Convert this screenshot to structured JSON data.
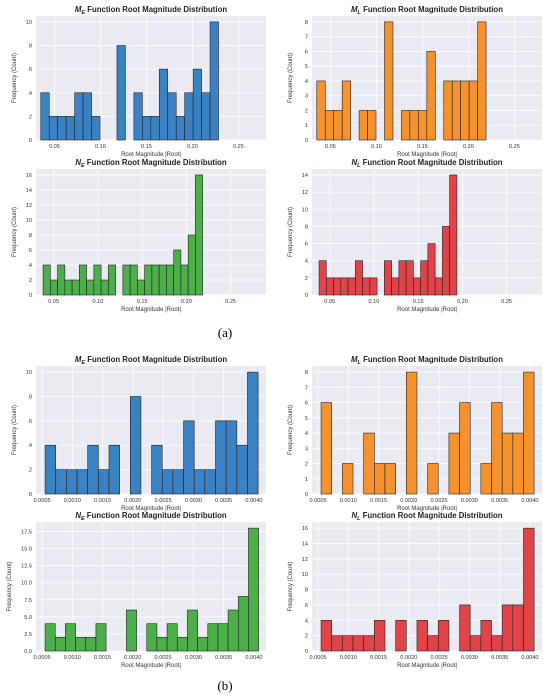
{
  "panel_labels": [
    "(a)",
    "(b)"
  ],
  "chart_data": [
    {
      "type": "bar",
      "group": "a",
      "title": {
        "symbol": "M",
        "sub": "E",
        "rest": " Function Root Magnitude Distribution"
      },
      "color": "#3b82c4",
      "xlabel": "Root Magnitude |Root|",
      "ylabel": "Frequency (Count)",
      "xlim": [
        0.03,
        0.28
      ],
      "xticks": [
        "0.05",
        "0.10",
        "0.15",
        "0.20",
        "0.25"
      ],
      "xtick_values": [
        0.05,
        0.1,
        0.15,
        0.2,
        0.25
      ],
      "ylim": [
        0,
        10.5
      ],
      "yticks": [
        0,
        2,
        4,
        6,
        8,
        10
      ],
      "bin_start": 0.0352,
      "bin_width": 0.0092,
      "values": [
        4,
        2,
        2,
        2,
        4,
        4,
        2,
        0,
        0,
        8,
        0,
        4,
        2,
        2,
        6,
        4,
        2,
        4,
        6,
        4,
        10
      ]
    },
    {
      "type": "bar",
      "group": "a",
      "title": {
        "symbol": "M",
        "sub": "L",
        "rest": " Function Root Magnitude Distribution"
      },
      "color": "#f5922e",
      "xlabel": "Root Magnitude |Root|",
      "ylabel": "Frequency (Count)",
      "xlim": [
        0.03,
        0.28
      ],
      "xticks": [
        "0.05",
        "0.10",
        "0.15",
        "0.20",
        "0.25"
      ],
      "xtick_values": [
        0.05,
        0.1,
        0.15,
        0.2,
        0.25
      ],
      "ylim": [
        0,
        8.4
      ],
      "yticks": [
        0,
        1,
        2,
        3,
        4,
        5,
        6,
        7,
        8
      ],
      "bin_start": 0.0352,
      "bin_width": 0.0092,
      "values": [
        4,
        2,
        2,
        4,
        0,
        2,
        2,
        0,
        8,
        0,
        2,
        2,
        2,
        6,
        0,
        4,
        4,
        4,
        4,
        8
      ]
    },
    {
      "type": "bar",
      "group": "a",
      "title": {
        "symbol": "N",
        "sub": "E",
        "rest": " Function Root Magnitude Distribution"
      },
      "color": "#4daf4a",
      "xlabel": "Root Magnitude |Root|",
      "ylabel": "Frequency (Count)",
      "xlim": [
        0.03,
        0.29
      ],
      "xticks": [
        "0.05",
        "0.10",
        "0.15",
        "0.20",
        "0.25"
      ],
      "xtick_values": [
        0.05,
        0.1,
        0.15,
        0.2,
        0.25
      ],
      "ylim": [
        0,
        16.8
      ],
      "yticks": [
        0,
        2,
        4,
        6,
        8,
        10,
        12,
        14,
        16
      ],
      "bin_start": 0.038,
      "bin_width": 0.0082,
      "values": [
        4,
        2,
        4,
        2,
        2,
        4,
        2,
        4,
        2,
        4,
        0,
        4,
        4,
        2,
        4,
        4,
        4,
        4,
        6,
        4,
        8,
        16
      ]
    },
    {
      "type": "bar",
      "group": "a",
      "title": {
        "symbol": "N",
        "sub": "L",
        "rest": " Function Root Magnitude Distribution"
      },
      "color": "#e04449",
      "xlabel": "Root Magnitude |Root|",
      "ylabel": "Frequency (Count)",
      "xlim": [
        0.03,
        0.29
      ],
      "xticks": [
        "0.05",
        "0.10",
        "0.15",
        "0.20",
        "0.25"
      ],
      "xtick_values": [
        0.05,
        0.1,
        0.15,
        0.2,
        0.25
      ],
      "ylim": [
        0,
        14.7
      ],
      "yticks": [
        0,
        2,
        4,
        6,
        8,
        10,
        12,
        14
      ],
      "bin_start": 0.038,
      "bin_width": 0.0082,
      "values": [
        4,
        2,
        2,
        2,
        2,
        4,
        2,
        2,
        0,
        4,
        2,
        4,
        4,
        2,
        4,
        6,
        2,
        8,
        14
      ]
    },
    {
      "type": "bar",
      "group": "b",
      "title": {
        "symbol": "M",
        "sub": "E",
        "rest": " Function Root Magnitude Distribution"
      },
      "color": "#3b82c4",
      "xlabel": "Root Magnitude |Root|",
      "ylabel": "Frequency (Count)",
      "xlim": [
        0.0004,
        0.0042
      ],
      "xticks": [
        "0.0005",
        "0.0010",
        "0.0015",
        "0.0020",
        "0.0025",
        "0.0030",
        "0.0035",
        "0.0040"
      ],
      "xtick_values": [
        0.0005,
        0.001,
        0.0015,
        0.002,
        0.0025,
        0.003,
        0.0035,
        0.004
      ],
      "ylim": [
        0,
        10.5
      ],
      "yticks": [
        0,
        2,
        4,
        6,
        8,
        10
      ],
      "bin_start": 0.00055,
      "bin_width": 0.000176,
      "values": [
        4,
        2,
        2,
        2,
        4,
        2,
        4,
        0,
        8,
        0,
        4,
        2,
        2,
        6,
        2,
        2,
        6,
        6,
        4,
        10
      ]
    },
    {
      "type": "bar",
      "group": "b",
      "title": {
        "symbol": "M",
        "sub": "L",
        "rest": " Function Root Magnitude Distribution"
      },
      "color": "#f5922e",
      "xlabel": "Root Magnitude |Root|",
      "ylabel": "Frequency (Count)",
      "xlim": [
        0.0004,
        0.0042
      ],
      "xticks": [
        "0.0005",
        "0.0010",
        "0.0015",
        "0.0020",
        "0.0025",
        "0.0030",
        "0.0035",
        "0.0040"
      ],
      "xtick_values": [
        0.0005,
        0.001,
        0.0015,
        0.002,
        0.0025,
        0.003,
        0.0035,
        0.004
      ],
      "ylim": [
        0,
        8.4
      ],
      "yticks": [
        0,
        1,
        2,
        3,
        4,
        5,
        6,
        7,
        8
      ],
      "bin_start": 0.00055,
      "bin_width": 0.000176,
      "values": [
        6,
        0,
        2,
        0,
        4,
        2,
        2,
        0,
        8,
        0,
        2,
        0,
        4,
        6,
        0,
        2,
        6,
        4,
        4,
        8
      ]
    },
    {
      "type": "bar",
      "group": "b",
      "title": {
        "symbol": "N",
        "sub": "E",
        "rest": " Function Root Magnitude Distribution"
      },
      "color": "#4daf4a",
      "xlabel": "Root Magnitude |Root|",
      "ylabel": "Frequency (Count)",
      "xlim": [
        0.0004,
        0.0042
      ],
      "xticks": [
        "0.0005",
        "0.0010",
        "0.0015",
        "0.0020",
        "0.0025",
        "0.0030",
        "0.0035",
        "0.0040"
      ],
      "xtick_values": [
        0.0005,
        0.001,
        0.0015,
        0.002,
        0.0025,
        0.003,
        0.0035,
        0.004
      ],
      "ylim": [
        0,
        18.9
      ],
      "yticks": [
        "0.0",
        "2.5",
        "5.0",
        "7.5",
        "10.0",
        "12.5",
        "15.0",
        "17.5"
      ],
      "ytick_values": [
        0,
        2.5,
        5,
        7.5,
        10,
        12.5,
        15,
        17.5
      ],
      "bin_start": 0.00055,
      "bin_width": 0.000168,
      "values": [
        4,
        2,
        4,
        2,
        2,
        4,
        0,
        0,
        6,
        0,
        4,
        2,
        4,
        2,
        6,
        2,
        4,
        4,
        6,
        8,
        18
      ]
    },
    {
      "type": "bar",
      "group": "b",
      "title": {
        "symbol": "N",
        "sub": "L",
        "rest": " Function Root Magnitude Distribution"
      },
      "color": "#e04449",
      "xlabel": "Root Magnitude |Root|",
      "ylabel": "Frequency (Count)",
      "xlim": [
        0.0004,
        0.0042
      ],
      "xticks": [
        "0.0005",
        "0.0010",
        "0.0015",
        "0.0020",
        "0.0025",
        "0.0030",
        "0.0035",
        "0.0040"
      ],
      "xtick_values": [
        0.0005,
        0.001,
        0.0015,
        0.002,
        0.0025,
        0.003,
        0.0035,
        0.004
      ],
      "ylim": [
        0,
        16.8
      ],
      "yticks": [
        0,
        2,
        4,
        6,
        8,
        10,
        12,
        14,
        16
      ],
      "bin_start": 0.00055,
      "bin_width": 0.000176,
      "values": [
        4,
        2,
        2,
        2,
        2,
        4,
        0,
        4,
        0,
        4,
        2,
        4,
        0,
        6,
        2,
        4,
        2,
        6,
        6,
        16
      ]
    }
  ]
}
